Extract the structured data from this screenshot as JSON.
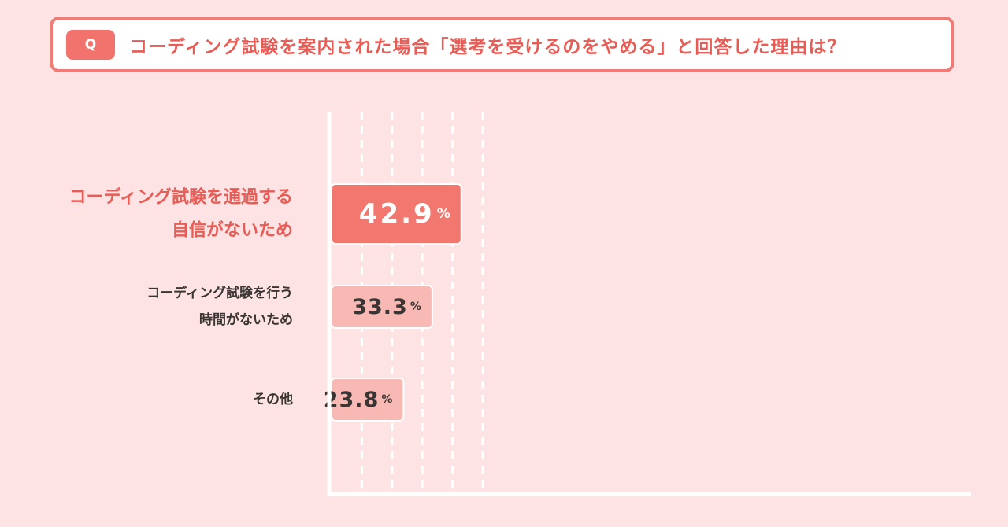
{
  "question": {
    "badge": "Q",
    "text": "コーディング試験を案内された場合「選考を受けるのをやめる」と回答した理由は？"
  },
  "colors": {
    "background": "#fde3e3",
    "accent": "#f2736d",
    "accent_text": "#e85c55",
    "bar_highlight": "#f2776f",
    "bar_normal": "#f8b8b4",
    "text_dark": "#3a3433",
    "axis": "#ffffff"
  },
  "chart_data": {
    "type": "bar",
    "orientation": "horizontal",
    "categories": [
      [
        "コーディング試験を通過する",
        "自信がないため"
      ],
      [
        "コーディング試験を行う",
        "時間がないため"
      ],
      [
        "その他"
      ]
    ],
    "values": [
      42.9,
      33.3,
      23.8
    ],
    "value_suffix": "%",
    "highlight_index": 0,
    "xlim": [
      0,
      50
    ],
    "grid": "dashed-vertical",
    "title": "",
    "xlabel": "",
    "ylabel": ""
  }
}
